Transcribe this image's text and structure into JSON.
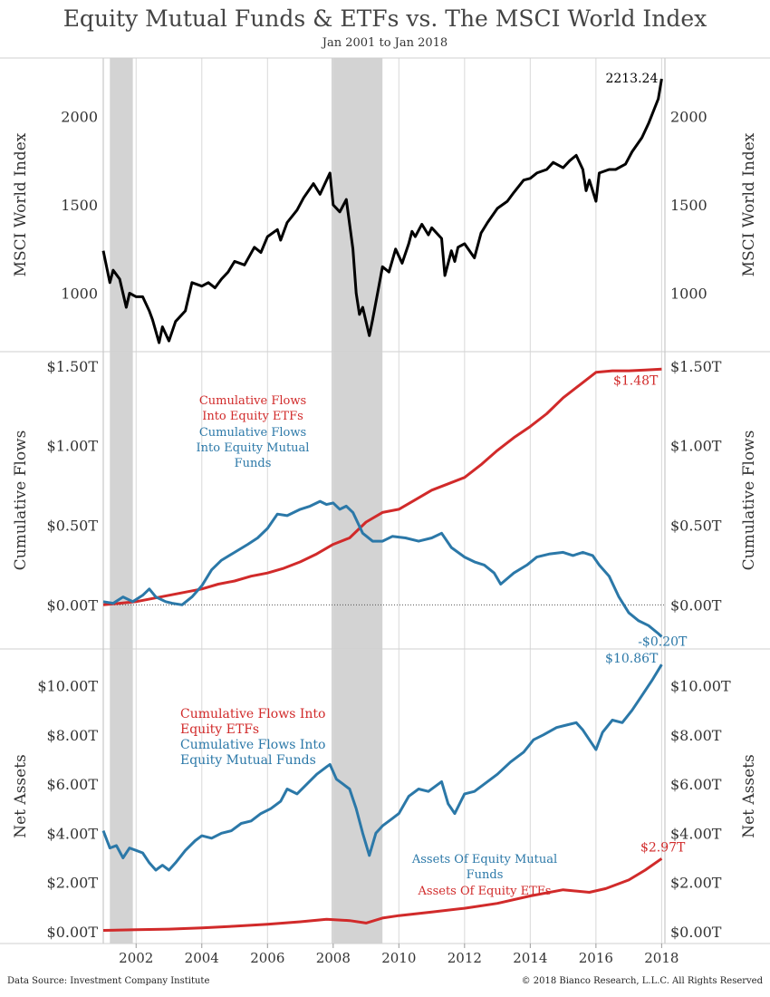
{
  "title": "Equity Mutual Funds & ETFs vs. The MSCI World Index",
  "subtitle": "Jan 2001 to Jan 2018",
  "footer": {
    "source": "Data Source: Investment Company Institute",
    "copyright": "© 2018 Bianco Research, L.L.C. All Rights Reserved"
  },
  "colors": {
    "index": "#000000",
    "etf": "#d12a2a",
    "mutual": "#2b78a8",
    "recession": "#d3d3d3",
    "grid": "#d9d9d9"
  },
  "chart_data": [
    {
      "type": "line",
      "ylabel": "MSCI World Index",
      "ylim": [
        700,
        2300
      ],
      "yticks": [
        1000,
        1500,
        2000
      ],
      "ytick_labels": [
        "1000",
        "1500",
        "2000"
      ],
      "xlim": [
        2001.0,
        2018.1
      ],
      "xticks": [
        2002,
        2004,
        2006,
        2008,
        2010,
        2012,
        2014,
        2016,
        2018
      ],
      "xtick_labels": [
        "2002",
        "2004",
        "2006",
        "2008",
        "2010",
        "2012",
        "2014",
        "2016",
        "2018"
      ],
      "recessions": [
        [
          2001.2,
          2001.9
        ],
        [
          2007.95,
          2009.5
        ]
      ],
      "series": [
        {
          "key": "index",
          "end_label": "2213.24",
          "x": [
            2001.0,
            2001.2,
            2001.3,
            2001.5,
            2001.7,
            2001.8,
            2002.0,
            2002.2,
            2002.4,
            2002.5,
            2002.7,
            2002.8,
            2003.0,
            2003.2,
            2003.5,
            2003.7,
            2004.0,
            2004.2,
            2004.4,
            2004.6,
            2004.8,
            2005.0,
            2005.3,
            2005.6,
            2005.8,
            2006.0,
            2006.3,
            2006.4,
            2006.6,
            2006.9,
            2007.1,
            2007.4,
            2007.6,
            2007.8,
            2007.9,
            2008.0,
            2008.2,
            2008.4,
            2008.6,
            2008.7,
            2008.8,
            2008.9,
            2009.1,
            2009.2,
            2009.4,
            2009.5,
            2009.7,
            2009.9,
            2010.1,
            2010.3,
            2010.4,
            2010.5,
            2010.7,
            2010.9,
            2011.0,
            2011.3,
            2011.4,
            2011.6,
            2011.7,
            2011.8,
            2012.0,
            2012.3,
            2012.5,
            2012.7,
            2013.0,
            2013.3,
            2013.5,
            2013.8,
            2014.0,
            2014.2,
            2014.5,
            2014.7,
            2015.0,
            2015.2,
            2015.4,
            2015.6,
            2015.7,
            2015.8,
            2016.0,
            2016.1,
            2016.4,
            2016.6,
            2016.9,
            2017.1,
            2017.4,
            2017.6,
            2017.9,
            2018.0
          ],
          "values": [
            1240,
            1060,
            1130,
            1080,
            920,
            1000,
            980,
            980,
            900,
            850,
            720,
            810,
            730,
            840,
            900,
            1060,
            1040,
            1060,
            1030,
            1080,
            1120,
            1180,
            1160,
            1260,
            1230,
            1320,
            1360,
            1300,
            1400,
            1470,
            1540,
            1620,
            1560,
            1640,
            1680,
            1500,
            1460,
            1530,
            1250,
            1000,
            880,
            920,
            760,
            850,
            1050,
            1150,
            1120,
            1250,
            1170,
            1280,
            1350,
            1320,
            1390,
            1330,
            1370,
            1310,
            1100,
            1240,
            1180,
            1260,
            1280,
            1200,
            1340,
            1400,
            1480,
            1520,
            1570,
            1640,
            1650,
            1680,
            1700,
            1740,
            1710,
            1750,
            1780,
            1700,
            1580,
            1640,
            1520,
            1680,
            1700,
            1700,
            1730,
            1800,
            1880,
            1960,
            2100,
            2213
          ]
        }
      ]
    },
    {
      "type": "line",
      "ylabel": "Cumulative Flows",
      "ylim": [
        -0.22,
        1.55
      ],
      "yticks": [
        0,
        0.5,
        1.0,
        1.5
      ],
      "ytick_labels": [
        "$0.00T",
        "$0.50T",
        "$1.00T",
        "$1.50T"
      ],
      "recessions": [
        [
          2001.2,
          2001.9
        ],
        [
          2007.95,
          2009.5
        ]
      ],
      "legend": [
        "Cumulative Flows Into Equity ETFs",
        "Cumulative Flows Into Equity Mutual Funds"
      ],
      "series": [
        {
          "key": "etf",
          "name": "Cumulative Flows Into Equity ETFs",
          "end_label": "$1.48T",
          "x": [
            2001.0,
            2001.5,
            2002.0,
            2002.5,
            2003.0,
            2003.5,
            2004.0,
            2004.5,
            2005.0,
            2005.5,
            2006.0,
            2006.5,
            2007.0,
            2007.5,
            2008.0,
            2008.5,
            2009.0,
            2009.5,
            2010.0,
            2010.5,
            2011.0,
            2011.5,
            2012.0,
            2012.5,
            2013.0,
            2013.5,
            2014.0,
            2014.5,
            2015.0,
            2015.5,
            2016.0,
            2016.5,
            2017.0,
            2017.5,
            2018.0
          ],
          "values": [
            0.0,
            0.01,
            0.02,
            0.04,
            0.06,
            0.08,
            0.1,
            0.13,
            0.15,
            0.18,
            0.2,
            0.23,
            0.27,
            0.32,
            0.38,
            0.42,
            0.52,
            0.58,
            0.6,
            0.66,
            0.72,
            0.76,
            0.8,
            0.88,
            0.97,
            1.05,
            1.12,
            1.2,
            1.3,
            1.38,
            1.46,
            1.47,
            1.47,
            1.475,
            1.48
          ]
        },
        {
          "key": "mutual",
          "name": "Cumulative Flows Into Equity Mutual Funds",
          "end_label": "-$0.20T",
          "x": [
            2001.0,
            2001.3,
            2001.6,
            2001.9,
            2002.2,
            2002.4,
            2002.6,
            2002.9,
            2003.1,
            2003.4,
            2003.7,
            2004.0,
            2004.3,
            2004.6,
            2005.0,
            2005.4,
            2005.7,
            2006.0,
            2006.3,
            2006.6,
            2007.0,
            2007.3,
            2007.6,
            2007.8,
            2008.0,
            2008.2,
            2008.4,
            2008.6,
            2008.9,
            2009.2,
            2009.5,
            2009.8,
            2010.2,
            2010.6,
            2011.0,
            2011.3,
            2011.6,
            2012.0,
            2012.3,
            2012.6,
            2012.9,
            2013.1,
            2013.5,
            2013.9,
            2014.2,
            2014.6,
            2015.0,
            2015.3,
            2015.6,
            2015.9,
            2016.1,
            2016.4,
            2016.7,
            2017.0,
            2017.3,
            2017.6,
            2017.9,
            2018.0
          ],
          "values": [
            0.02,
            0.01,
            0.05,
            0.02,
            0.06,
            0.1,
            0.05,
            0.02,
            0.01,
            0.0,
            0.05,
            0.12,
            0.22,
            0.28,
            0.33,
            0.38,
            0.42,
            0.48,
            0.57,
            0.56,
            0.6,
            0.62,
            0.65,
            0.63,
            0.64,
            0.6,
            0.62,
            0.58,
            0.45,
            0.4,
            0.4,
            0.43,
            0.42,
            0.4,
            0.42,
            0.45,
            0.36,
            0.3,
            0.27,
            0.25,
            0.2,
            0.13,
            0.2,
            0.25,
            0.3,
            0.32,
            0.33,
            0.31,
            0.33,
            0.31,
            0.25,
            0.18,
            0.05,
            -0.05,
            -0.1,
            -0.13,
            -0.18,
            -0.2
          ]
        }
      ]
    },
    {
      "type": "line",
      "ylabel": "Net Assets",
      "ylim": [
        -0.3,
        11.2
      ],
      "yticks": [
        0,
        2,
        4,
        6,
        8,
        10
      ],
      "ytick_labels": [
        "$0.00T",
        "$2.00T",
        "$4.00T",
        "$6.00T",
        "$8.00T",
        "$10.00T"
      ],
      "recessions": [
        [
          2001.2,
          2001.9
        ],
        [
          2007.95,
          2009.5
        ]
      ],
      "legend": [
        "Cumulative Flows Into Equity ETFs",
        "Cumulative Flows Into Equity Mutual Funds"
      ],
      "annotation_lines": [
        "Assets Of Equity Mutual Funds",
        "Assets Of Equity ETFs"
      ],
      "series": [
        {
          "key": "mutual",
          "name": "Assets Of Equity Mutual Funds",
          "end_label": "$10.86T",
          "x": [
            2001.0,
            2001.2,
            2001.4,
            2001.6,
            2001.8,
            2002.0,
            2002.2,
            2002.4,
            2002.6,
            2002.8,
            2003.0,
            2003.2,
            2003.5,
            2003.8,
            2004.0,
            2004.3,
            2004.6,
            2004.9,
            2005.2,
            2005.5,
            2005.8,
            2006.1,
            2006.4,
            2006.6,
            2006.9,
            2007.2,
            2007.5,
            2007.8,
            2007.9,
            2008.1,
            2008.3,
            2008.5,
            2008.7,
            2008.9,
            2009.1,
            2009.3,
            2009.5,
            2009.8,
            2010.0,
            2010.3,
            2010.6,
            2010.9,
            2011.3,
            2011.5,
            2011.7,
            2012.0,
            2012.3,
            2012.6,
            2013.0,
            2013.4,
            2013.8,
            2014.1,
            2014.4,
            2014.8,
            2015.1,
            2015.4,
            2015.6,
            2015.8,
            2016.0,
            2016.2,
            2016.5,
            2016.8,
            2017.1,
            2017.4,
            2017.7,
            2018.0
          ],
          "values": [
            4.1,
            3.4,
            3.5,
            3.0,
            3.4,
            3.3,
            3.2,
            2.8,
            2.5,
            2.7,
            2.5,
            2.8,
            3.3,
            3.7,
            3.9,
            3.8,
            4.0,
            4.1,
            4.4,
            4.5,
            4.8,
            5.0,
            5.3,
            5.8,
            5.6,
            6.0,
            6.4,
            6.7,
            6.8,
            6.2,
            6.0,
            5.8,
            5.0,
            4.0,
            3.1,
            4.0,
            4.3,
            4.6,
            4.8,
            5.5,
            5.8,
            5.7,
            6.1,
            5.2,
            4.8,
            5.6,
            5.7,
            6.0,
            6.4,
            6.9,
            7.3,
            7.8,
            8.0,
            8.3,
            8.4,
            8.5,
            8.2,
            7.8,
            7.4,
            8.1,
            8.6,
            8.5,
            9.0,
            9.6,
            10.2,
            10.86
          ]
        },
        {
          "key": "etf",
          "name": "Assets Of Equity ETFs",
          "end_label": "$2.97T",
          "x": [
            2001.0,
            2002.0,
            2003.0,
            2004.0,
            2005.0,
            2006.0,
            2007.0,
            2007.8,
            2008.5,
            2009.0,
            2009.5,
            2010.0,
            2011.0,
            2012.0,
            2013.0,
            2014.0,
            2015.0,
            2015.8,
            2016.3,
            2017.0,
            2017.5,
            2018.0
          ],
          "values": [
            0.05,
            0.08,
            0.1,
            0.15,
            0.22,
            0.3,
            0.4,
            0.5,
            0.45,
            0.35,
            0.55,
            0.65,
            0.8,
            0.95,
            1.15,
            1.45,
            1.7,
            1.6,
            1.75,
            2.1,
            2.5,
            2.97
          ]
        }
      ]
    }
  ]
}
